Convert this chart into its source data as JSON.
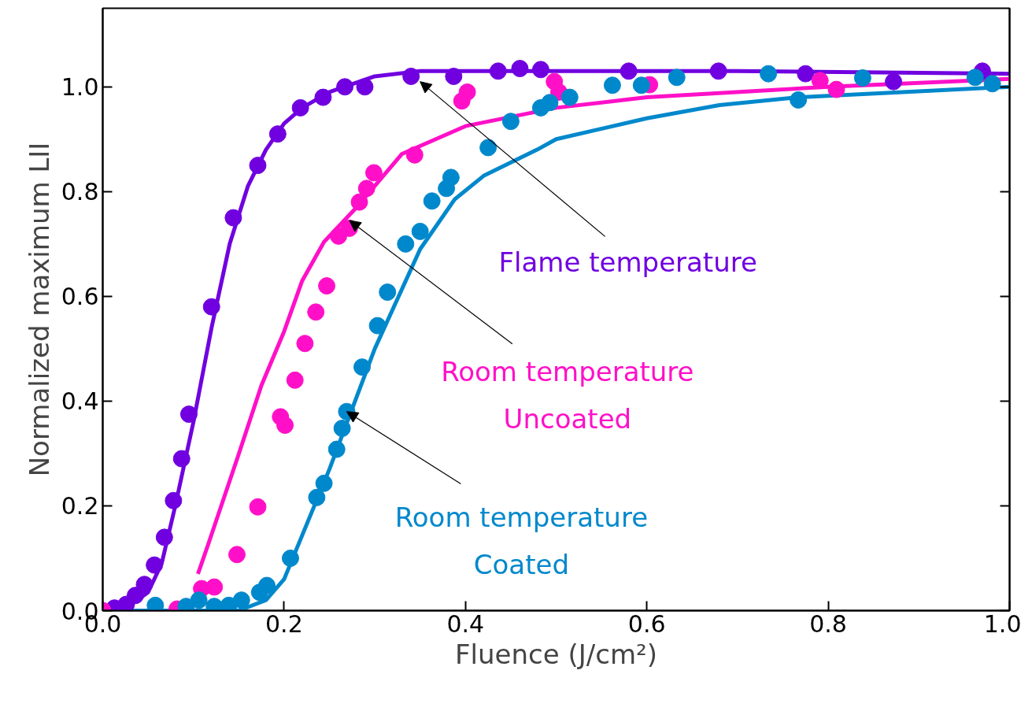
{
  "chart_data": {
    "type": "scatter",
    "xlabel": "Fluence (J/cm²)",
    "ylabel": "Normalized maximum LII",
    "xlim": [
      0,
      1.0
    ],
    "ylim": [
      0,
      1.15
    ],
    "xticks": [
      {
        "value": 0,
        "label": "0.0"
      },
      0.2,
      0.4,
      0.6,
      0.8,
      {
        "value": 1.0,
        "label": "1.0"
      }
    ],
    "yticks": [
      {
        "value": 0,
        "label": "0.0"
      },
      0.2,
      0.4,
      0.6,
      0.8,
      {
        "value": 1.0,
        "label": "1.0"
      }
    ],
    "grid": false,
    "line_style": "solid",
    "series": [
      {
        "type": "scatter",
        "marker": "circle",
        "color": "#7000e0",
        "x": [
          0.013,
          0.026,
          0.036,
          0.046,
          0.057,
          0.068,
          0.078,
          0.087,
          0.095,
          0.12,
          0.144,
          0.171,
          0.193,
          0.218,
          0.243,
          0.267,
          0.289,
          0.34,
          0.387,
          0.436,
          0.46,
          0.483,
          0.58,
          0.679,
          0.775,
          0.872,
          0.97
        ],
        "values": [
          0.005,
          0.012,
          0.029,
          0.05,
          0.087,
          0.14,
          0.21,
          0.29,
          0.375,
          0.58,
          0.75,
          0.85,
          0.91,
          0.96,
          0.98,
          1.0,
          1.0,
          1.02,
          1.02,
          1.03,
          1.035,
          1.033,
          1.03,
          1.03,
          1.025,
          1.01,
          1.03
        ]
      },
      {
        "type": "scatter",
        "marker": "circle",
        "color": "#ff10c8",
        "x": [
          0,
          0.082,
          0.109,
          0.123,
          0.148,
          0.171,
          0.196,
          0.201,
          0.212,
          0.223,
          0.235,
          0.247,
          0.26,
          0.272,
          0.283,
          0.291,
          0.299,
          0.344,
          0.396,
          0.402,
          0.498,
          0.503,
          0.603,
          0.791,
          0.809
        ],
        "values": [
          0,
          0.003,
          0.042,
          0.045,
          0.107,
          0.198,
          0.37,
          0.354,
          0.44,
          0.51,
          0.57,
          0.62,
          0.715,
          0.73,
          0.78,
          0.806,
          0.836,
          0.87,
          0.973,
          0.99,
          1.01,
          0.99,
          1.004,
          1.012,
          0.995
        ]
      },
      {
        "type": "scatter",
        "marker": "circle",
        "color": "#0088cc",
        "x": [
          0.058,
          0.092,
          0.106,
          0.123,
          0.139,
          0.153,
          0.173,
          0.181,
          0.207,
          0.236,
          0.244,
          0.258,
          0.264,
          0.269,
          0.286,
          0.303,
          0.314,
          0.334,
          0.35,
          0.363,
          0.379,
          0.384,
          0.425,
          0.45,
          0.483,
          0.493,
          0.515,
          0.562,
          0.594,
          0.633,
          0.734,
          0.767,
          0.838,
          0.962,
          0.981
        ],
        "values": [
          0.01,
          0.008,
          0.02,
          0.008,
          0.01,
          0.02,
          0.035,
          0.048,
          0.1,
          0.216,
          0.243,
          0.308,
          0.348,
          0.38,
          0.465,
          0.544,
          0.608,
          0.7,
          0.724,
          0.782,
          0.806,
          0.827,
          0.884,
          0.934,
          0.96,
          0.97,
          0.98,
          1.003,
          1.003,
          1.018,
          1.025,
          0.975,
          1.017,
          1.018,
          1.006
        ]
      },
      {
        "type": "line",
        "marker": "none",
        "color": "#7000e0",
        "x": [
          0,
          0.03,
          0.05,
          0.065,
          0.08,
          0.1,
          0.12,
          0.14,
          0.16,
          0.18,
          0.2,
          0.22,
          0.25,
          0.3,
          0.35,
          0.5,
          0.7,
          1.0
        ],
        "values": [
          0,
          0.01,
          0.035,
          0.09,
          0.2,
          0.36,
          0.54,
          0.7,
          0.81,
          0.88,
          0.93,
          0.96,
          0.99,
          1.02,
          1.03,
          1.03,
          1.03,
          1.025
        ]
      },
      {
        "type": "line",
        "marker": "none",
        "color": "#ff10c8",
        "x": [
          0.105,
          0.117,
          0.149,
          0.175,
          0.2,
          0.22,
          0.244,
          0.28,
          0.33,
          0.4,
          0.5,
          0.6,
          0.8,
          1.0
        ],
        "values": [
          0.07,
          0.13,
          0.294,
          0.43,
          0.533,
          0.63,
          0.704,
          0.77,
          0.872,
          0.925,
          0.96,
          0.98,
          1.0,
          1.015
        ]
      },
      {
        "type": "line",
        "marker": "none",
        "color": "#0088cc",
        "x": [
          0,
          0.15,
          0.18,
          0.2,
          0.25,
          0.3,
          0.35,
          0.388,
          0.42,
          0.479,
          0.5,
          0.6,
          0.68,
          0.767,
          1.0
        ],
        "values": [
          0,
          0.0,
          0.02,
          0.06,
          0.27,
          0.5,
          0.69,
          0.785,
          0.83,
          0.88,
          0.9,
          0.94,
          0.965,
          0.98,
          1.0
        ]
      }
    ],
    "annotations": [
      {
        "text": "Flame temperature",
        "x": 0.35,
        "y": 1.01
      },
      {
        "text": "Room temperature\nUncoated",
        "x": 0.272,
        "y": 0.745
      },
      {
        "text": "Room temperature\nCoated",
        "x": 0.269,
        "y": 0.38
      }
    ]
  }
}
